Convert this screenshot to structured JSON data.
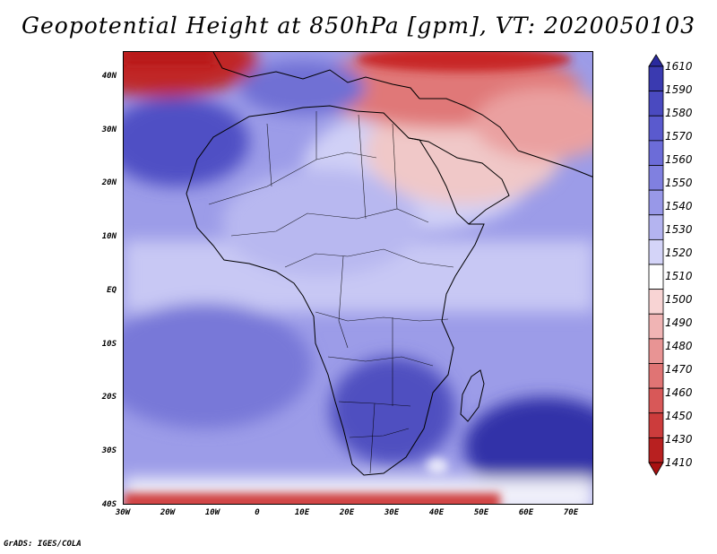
{
  "title": "Geopotential Height at 850hPa [gpm], VT: 2020050103",
  "footer": "GrADS: IGES/COLA",
  "lat_labels": [
    "40N",
    "30N",
    "20N",
    "10N",
    "EQ",
    "10S",
    "20S",
    "30S",
    "40S"
  ],
  "lon_labels": [
    "30W",
    "20W",
    "10W",
    "0",
    "10E",
    "20E",
    "30E",
    "40E",
    "50E",
    "60E",
    "70E"
  ],
  "legend": {
    "labels": [
      "1610",
      "1590",
      "1580",
      "1570",
      "1560",
      "1550",
      "1540",
      "1530",
      "1520",
      "1510",
      "1500",
      "1490",
      "1480",
      "1470",
      "1460",
      "1450",
      "1430",
      "1410"
    ],
    "colors": [
      "#2a2a9e",
      "#3a3ab0",
      "#4a4ac0",
      "#5a5ace",
      "#6c6cd8",
      "#8080e0",
      "#9898e8",
      "#b4b4f0",
      "#d4d4f8",
      "#ffffff",
      "#f8d4d4",
      "#f0b4b4",
      "#e89494",
      "#e07474",
      "#d85858",
      "#cc3c3c",
      "#b82020",
      "#a81010"
    ]
  },
  "map": {
    "lat_range": [
      -40,
      45
    ],
    "lon_range": [
      -30,
      75
    ],
    "variable": "Geopotential Height at 850hPa",
    "units": "gpm",
    "valid_time": "2020050103",
    "color_low": "#a81010",
    "color_high": "#2a2a9e"
  }
}
